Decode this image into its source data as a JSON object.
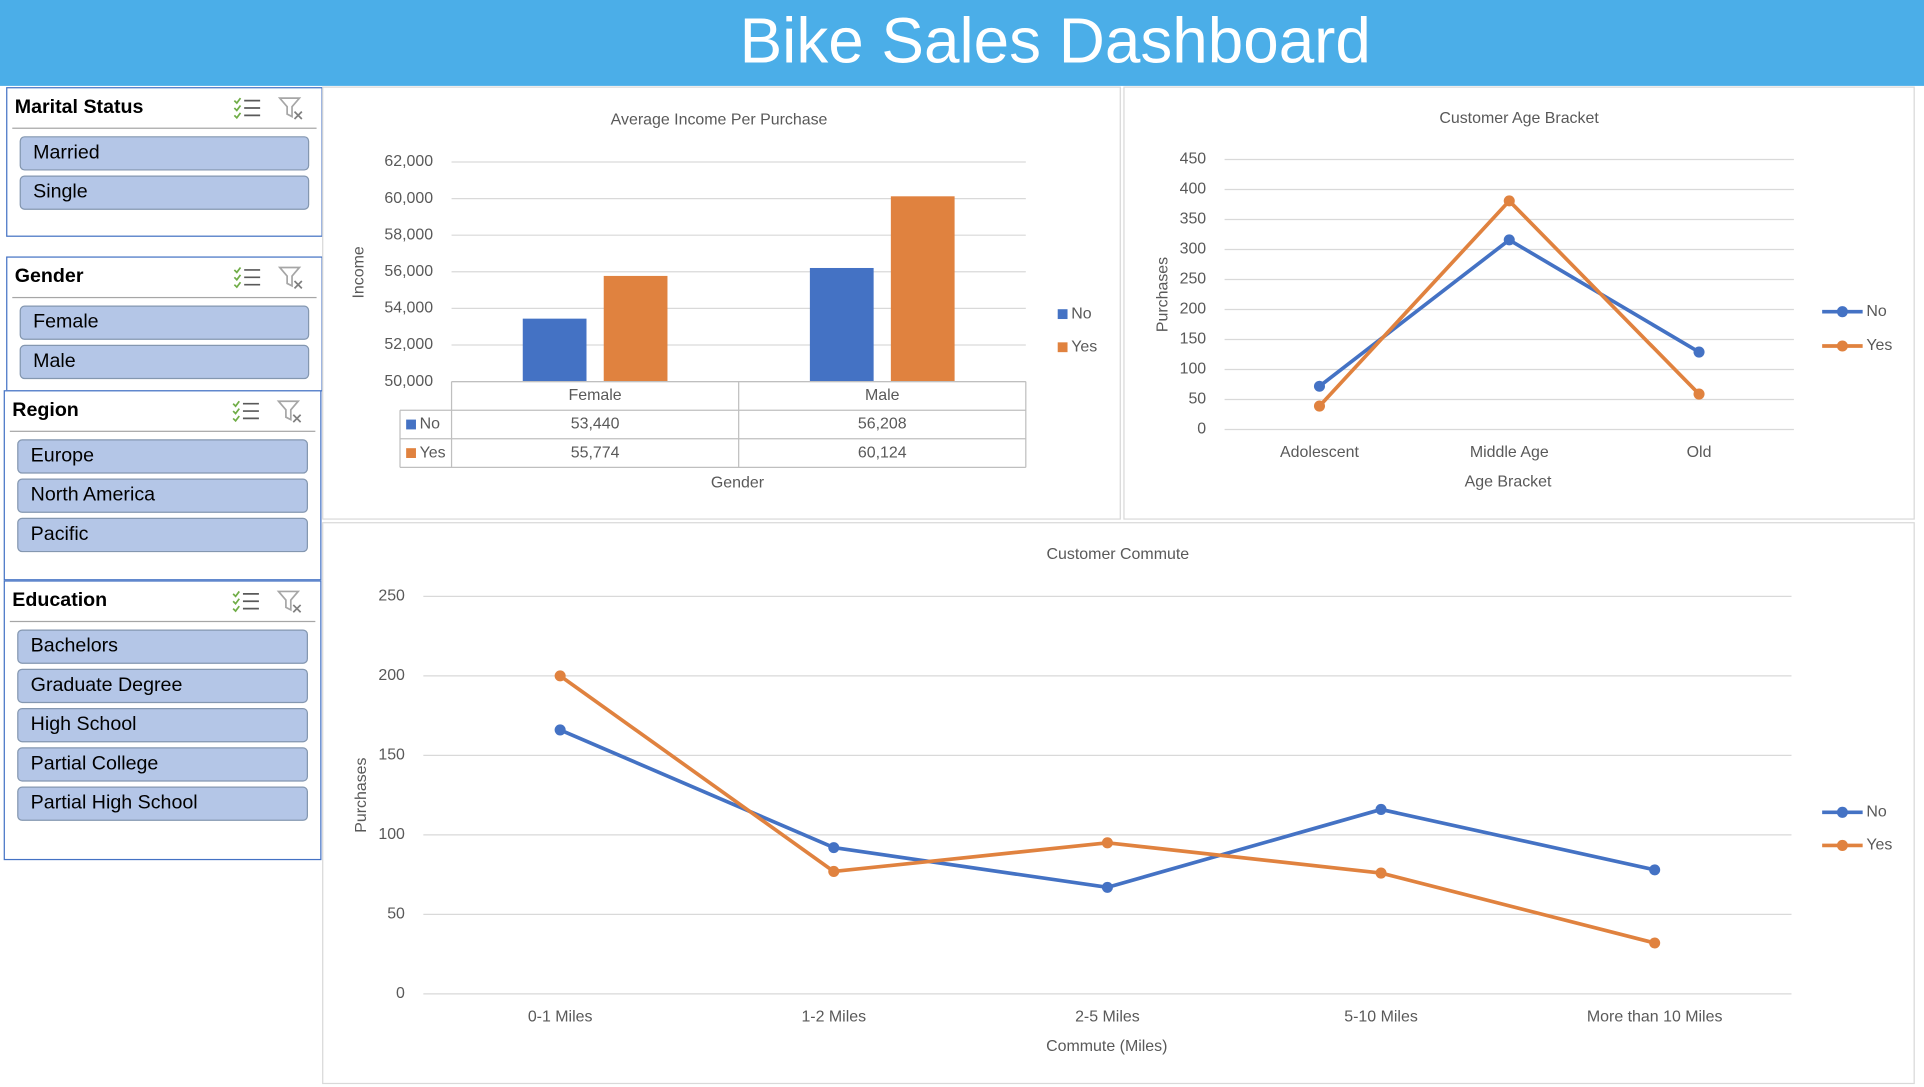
{
  "header": {
    "title": "Bike Sales Dashboard"
  },
  "slicers": [
    {
      "title": "Marital Status",
      "items": [
        "Married",
        "Single"
      ]
    },
    {
      "title": "Gender",
      "items": [
        "Female",
        "Male"
      ]
    },
    {
      "title": "Region",
      "items": [
        "Europe",
        "North America",
        "Pacific"
      ]
    },
    {
      "title": "Education",
      "items": [
        "Bachelors",
        "Graduate Degree",
        "High School",
        "Partial College",
        "Partial High School"
      ]
    }
  ],
  "chart_data": [
    {
      "type": "bar",
      "title": "Average Income Per Purchase",
      "y_label": "Income",
      "x_label": "Gender",
      "categories": [
        "Female",
        "Male"
      ],
      "series": [
        {
          "name": "No",
          "color": "#4472c4",
          "values": [
            53440,
            56208
          ],
          "value_labels": [
            "53,440",
            "56,208"
          ]
        },
        {
          "name": "Yes",
          "color": "#e0823f",
          "values": [
            55774,
            60124
          ],
          "value_labels": [
            "55,774",
            "60,124"
          ]
        }
      ],
      "ylim": [
        50000,
        62000
      ],
      "yticks": [
        {
          "value": 50000,
          "label": "50,000"
        },
        {
          "value": 52000,
          "label": "52,000"
        },
        {
          "value": 54000,
          "label": "54,000"
        },
        {
          "value": 56000,
          "label": "56,000"
        },
        {
          "value": 58000,
          "label": "58,000"
        },
        {
          "value": 60000,
          "label": "60,000"
        },
        {
          "value": 62000,
          "label": "62,000"
        }
      ],
      "grid": true,
      "legend": "right",
      "data_table": true
    },
    {
      "type": "line",
      "title": "Customer Age Bracket",
      "y_label": "Purchases",
      "x_label": "Age Bracket",
      "categories": [
        "Adolescent",
        "Middle Age",
        "Old"
      ],
      "series": [
        {
          "name": "No",
          "color": "#4472c4",
          "values": [
            72,
            316,
            129
          ]
        },
        {
          "name": "Yes",
          "color": "#e0823f",
          "values": [
            39,
            381,
            59
          ]
        }
      ],
      "ylim": [
        0,
        450
      ],
      "yticks": [
        0,
        50,
        100,
        150,
        200,
        250,
        300,
        350,
        400,
        450
      ],
      "grid": true,
      "legend": "right"
    },
    {
      "type": "line",
      "title": "Customer Commute",
      "y_label": "Purchases",
      "x_label": "Commute (Miles)",
      "categories": [
        "0-1 Miles",
        "1-2 Miles",
        "2-5 Miles",
        "5-10 Miles",
        "More than 10 Miles"
      ],
      "series": [
        {
          "name": "No",
          "color": "#4472c4",
          "values": [
            166,
            92,
            67,
            116,
            78
          ]
        },
        {
          "name": "Yes",
          "color": "#e0823f",
          "values": [
            200,
            77,
            95,
            76,
            32
          ]
        }
      ],
      "ylim": [
        0,
        250
      ],
      "yticks": [
        0,
        50,
        100,
        150,
        200,
        250
      ],
      "grid": true,
      "legend": "right"
    }
  ]
}
